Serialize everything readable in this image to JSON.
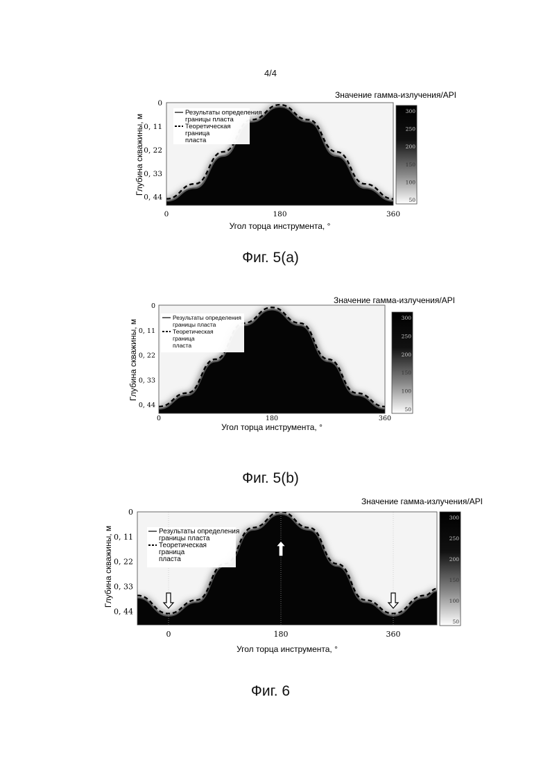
{
  "page_number": "4/4",
  "figures": [
    {
      "caption": "Фиг. 5(a)"
    },
    {
      "caption": "Фиг. 5(b)"
    },
    {
      "caption": "Фиг. 6"
    }
  ],
  "chart_data": [
    {
      "type": "heatmap",
      "title": "Значение гамма-излучения/API",
      "xlabel": "Угол торца инструмента, °",
      "ylabel": "Глубина скважины, м",
      "x_ticks": [
        "0",
        "180",
        "360"
      ],
      "y_ticks": [
        "0",
        "0, 11",
        "0, 22",
        "0, 33",
        "0, 44"
      ],
      "xlim": [
        0,
        360
      ],
      "ylim": [
        0.48,
        0
      ],
      "colorbar": {
        "ticks": [
          "300",
          "250",
          "200",
          "150",
          "100",
          "50"
        ],
        "range": [
          50,
          300
        ]
      },
      "legend": {
        "placement": "top-left",
        "entries": [
          "Результаты определения границы пласта",
          "Теоретическая граница пласта"
        ]
      },
      "series": [
        {
          "name": "Результаты определения границы пласта",
          "style": "solid",
          "x": [
            0,
            45,
            90,
            135,
            180,
            225,
            270,
            315,
            360
          ],
          "y": [
            0.46,
            0.4,
            0.25,
            0.09,
            0.02,
            0.09,
            0.25,
            0.4,
            0.46
          ]
        },
        {
          "name": "Теоретическая граница пласта",
          "style": "dashed",
          "x": [
            0,
            45,
            90,
            135,
            180,
            225,
            270,
            315,
            360
          ],
          "y": [
            0.45,
            0.38,
            0.23,
            0.08,
            0.01,
            0.08,
            0.23,
            0.38,
            0.45
          ]
        }
      ]
    },
    {
      "type": "heatmap",
      "title": "Значение гамма-излучения/API",
      "xlabel": "Угол торца инструмента, °",
      "ylabel": "Глубина скважины, м",
      "x_ticks": [
        "0",
        "180",
        "360"
      ],
      "y_ticks": [
        "0",
        "0, 11",
        "0, 22",
        "0, 33",
        "0, 44"
      ],
      "xlim": [
        0,
        360
      ],
      "ylim": [
        0.48,
        0
      ],
      "colorbar": {
        "ticks": [
          "300",
          "250",
          "200",
          "150",
          "100",
          "50"
        ],
        "range": [
          50,
          300
        ]
      },
      "legend": {
        "placement": "top-left",
        "entries": [
          "Результаты определения границы пласта",
          "Теоретическая граница пласта"
        ]
      },
      "series": [
        {
          "name": "Результаты определения границы пласта",
          "style": "solid",
          "x": [
            0,
            45,
            90,
            135,
            180,
            225,
            270,
            315,
            360
          ],
          "y": [
            0.46,
            0.4,
            0.25,
            0.09,
            0.02,
            0.09,
            0.25,
            0.4,
            0.46
          ]
        },
        {
          "name": "Теоретическая граница пласта",
          "style": "dashed",
          "x": [
            0,
            45,
            90,
            135,
            180,
            225,
            270,
            315,
            360
          ],
          "y": [
            0.45,
            0.39,
            0.24,
            0.08,
            0.01,
            0.08,
            0.24,
            0.39,
            0.45
          ]
        }
      ]
    },
    {
      "type": "heatmap",
      "title": "Значение гамма-излучения/API",
      "xlabel": "Угол торца инструмента, °",
      "ylabel": "Глубина скважины, м",
      "x_ticks": [
        "0",
        "180",
        "360"
      ],
      "y_ticks": [
        "0",
        "0, 11",
        "0, 22",
        "0, 33",
        "0, 44"
      ],
      "xlim": [
        -50,
        430
      ],
      "ylim": [
        0.5,
        0
      ],
      "colorbar": {
        "ticks": [
          "300",
          "250",
          "200",
          "150",
          "100",
          "50"
        ],
        "range": [
          50,
          300
        ]
      },
      "legend": {
        "placement": "top-left",
        "entries": [
          "Результаты определения границы пласта",
          "Теоретическая граница пласта"
        ]
      },
      "arrows": [
        {
          "x": 0,
          "direction": "down"
        },
        {
          "x": 180,
          "direction": "up"
        },
        {
          "x": 360,
          "direction": "down"
        }
      ],
      "series": [
        {
          "name": "Результаты определения границы пласта",
          "style": "solid",
          "x": [
            -50,
            0,
            45,
            90,
            135,
            180,
            225,
            270,
            315,
            360,
            410,
            430
          ],
          "y": [
            0.38,
            0.46,
            0.4,
            0.24,
            0.08,
            0.01,
            0.08,
            0.24,
            0.4,
            0.46,
            0.38,
            0.35
          ]
        },
        {
          "name": "Теоретическая граница пласта",
          "style": "dashed",
          "x": [
            -50,
            0,
            45,
            90,
            135,
            180,
            225,
            270,
            315,
            360,
            410,
            430
          ],
          "y": [
            0.37,
            0.45,
            0.39,
            0.23,
            0.07,
            0.0,
            0.07,
            0.23,
            0.39,
            0.45,
            0.37,
            0.34
          ]
        }
      ]
    }
  ]
}
